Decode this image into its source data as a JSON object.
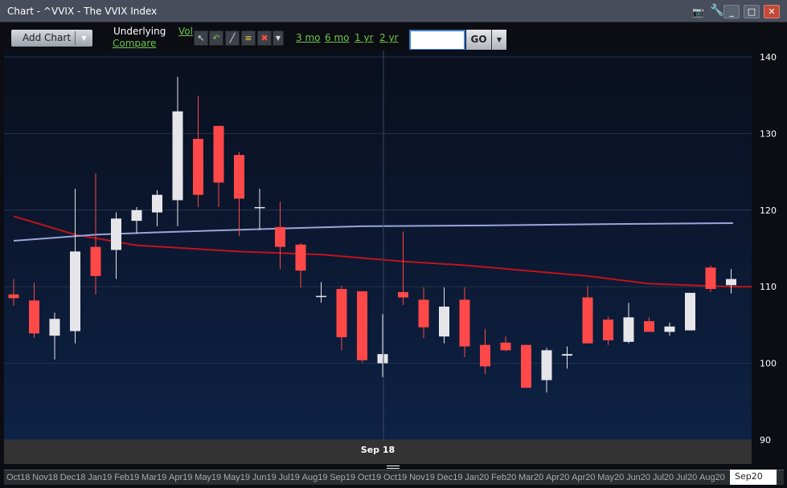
{
  "window": {
    "title": "Chart - ^VVIX - The VVIX Index",
    "icons": [
      "camera-icon",
      "wrench-icon",
      "minimize-icon",
      "maximize-icon",
      "close-icon"
    ]
  },
  "toolbar": {
    "add_chart": "Add Chart",
    "underlying": "Underlying",
    "vol": "Vol",
    "compare": "Compare",
    "ranges": [
      "3 mo",
      "6 mo",
      "1 yr",
      "2 yr"
    ],
    "symbol_value": "",
    "go": "GO",
    "tools": [
      "pointer-icon",
      "undo-icon",
      "line-icon",
      "lines-icon",
      "delete-icon",
      "dropdown-icon"
    ]
  },
  "crosshair_label": "Sep 18",
  "navigator": {
    "labels": [
      "Oct18",
      "Nov18",
      "Dec18",
      "Jan19",
      "Feb19",
      "Mar19",
      "Apr19",
      "May19",
      "May19",
      "Jun19",
      "Jul19",
      "Aug19",
      "Sep19",
      "Oct19",
      "Oct19",
      "Nov19",
      "Dec19",
      "Jan20",
      "Feb20",
      "Mar20",
      "Apr20",
      "Apr20",
      "May20",
      "Jun20",
      "Jul20",
      "Jul20",
      "Aug20"
    ],
    "selected": "Sep20"
  },
  "colors": {
    "up": "#e6e6ea",
    "down": "#ff4848",
    "ma_fast": "#c0141c",
    "ma_slow": "#9aa6d8",
    "background_top": "#0a0f1e",
    "background_bottom": "#0d2245"
  },
  "chart_data": {
    "type": "candlestick",
    "yticks": [
      90,
      100,
      110,
      120,
      130,
      140
    ],
    "ylim": [
      90,
      140
    ],
    "grid": true,
    "candles": [
      [
        109,
        111,
        107.5,
        108.5
      ],
      [
        108.2,
        110.5,
        103.3,
        103.9
      ],
      [
        103.6,
        106.6,
        100.5,
        105.8
      ],
      [
        104.2,
        122.8,
        102.6,
        114.6
      ],
      [
        115.2,
        124.8,
        109,
        111.4
      ],
      [
        114.8,
        119.7,
        111,
        118.9
      ],
      [
        118.6,
        120.4,
        116.9,
        120
      ],
      [
        119.7,
        122.6,
        117.9,
        122
      ],
      [
        121.3,
        137.4,
        117.9,
        132.9
      ],
      [
        129.3,
        134.9,
        120.4,
        122
      ],
      [
        131,
        131,
        120.4,
        123.6
      ],
      [
        127.2,
        127.6,
        116.6,
        121.5
      ],
      [
        120.4,
        122.8,
        117.4,
        120.4
      ],
      [
        117.8,
        121.1,
        112.3,
        115.2
      ],
      [
        115.5,
        115.7,
        109.9,
        112.1
      ],
      [
        108.8,
        110.6,
        107.9,
        108.8
      ],
      [
        109.7,
        110.1,
        101.7,
        103.4
      ],
      [
        109.4,
        109.4,
        100.1,
        100.4
      ],
      [
        100,
        106.4,
        98.2,
        101.2
      ],
      [
        109.3,
        117.2,
        107.6,
        108.6
      ],
      [
        108.3,
        109.9,
        103.3,
        104.7
      ],
      [
        103.5,
        109.9,
        102.6,
        107.4
      ],
      [
        108.3,
        109.9,
        100.8,
        102.2
      ],
      [
        102.4,
        104.5,
        98.6,
        99.6
      ],
      [
        102.7,
        103.5,
        101.6,
        101.7
      ],
      [
        102.4,
        102.4,
        96.8,
        96.8
      ],
      [
        97.8,
        102,
        96.2,
        101.7
      ],
      [
        101,
        102.2,
        99.3,
        101.2
      ],
      [
        108.6,
        110.1,
        102.6,
        102.6
      ],
      [
        105.7,
        106.1,
        102.4,
        103
      ],
      [
        102.8,
        107.9,
        102.6,
        106
      ],
      [
        105.5,
        106,
        104.1,
        104.1
      ],
      [
        104.1,
        105.3,
        103.6,
        104.8
      ],
      [
        104.3,
        109.2,
        104.3,
        109.2
      ],
      [
        112.5,
        112.8,
        109.3,
        109.7
      ],
      [
        110.2,
        112.3,
        109.1,
        111
      ]
    ],
    "moving_averages": [
      {
        "points": [
          [
            0,
            119.2
          ],
          [
            3,
            116.8
          ],
          [
            6,
            115.4
          ],
          [
            11,
            114.6
          ],
          [
            15,
            114.2
          ],
          [
            19,
            113.3
          ],
          [
            22,
            112.8
          ],
          [
            28,
            111.4
          ],
          [
            31,
            110.4
          ],
          [
            35,
            110
          ]
        ]
      },
      {
        "points": [
          [
            0,
            116
          ],
          [
            4,
            116.8
          ],
          [
            7,
            117.1
          ],
          [
            13,
            117.6
          ],
          [
            17,
            117.9
          ],
          [
            23,
            118
          ],
          [
            30,
            118.2
          ],
          [
            35,
            118.3
          ]
        ]
      }
    ]
  }
}
